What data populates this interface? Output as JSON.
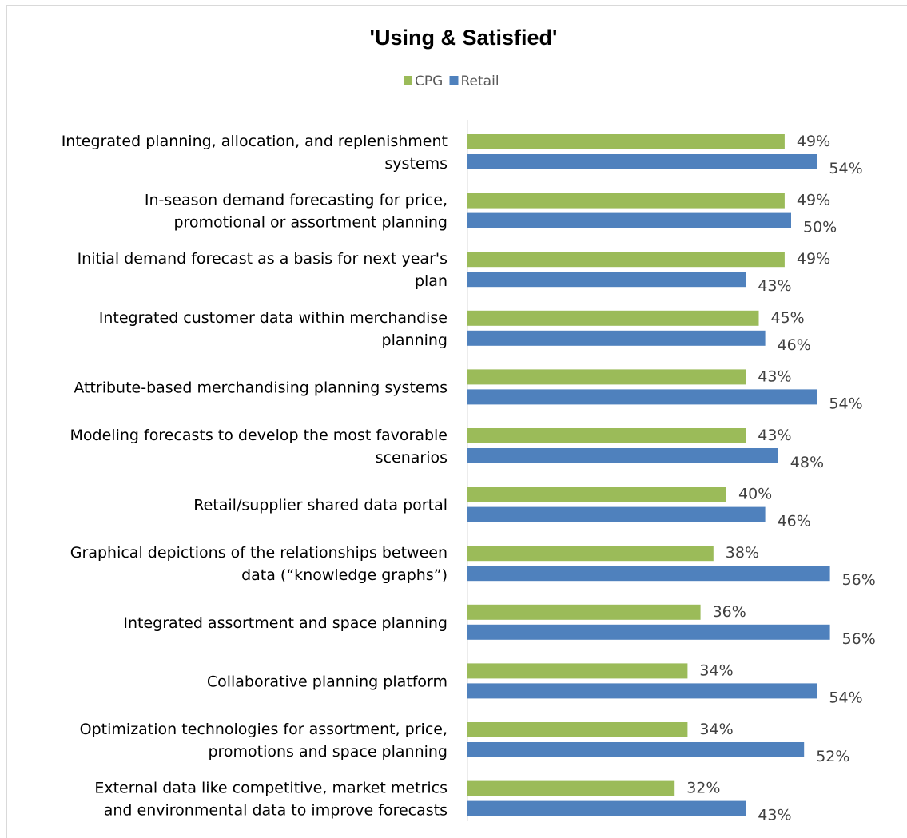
{
  "chart_data": {
    "type": "bar",
    "orientation": "horizontal",
    "title": "'Using & Satisfied'",
    "legend_position": "top",
    "xlim": [
      0,
      60
    ],
    "grid": false,
    "categories": [
      [
        "Integrated planning, allocation, and replenishment",
        "systems"
      ],
      [
        "In-season demand forecasting for price,",
        "promotional or assortment planning"
      ],
      [
        "Initial demand forecast as a basis for next year's",
        "plan"
      ],
      [
        "Integrated customer data within merchandise",
        "planning"
      ],
      [
        "Attribute-based merchandising planning systems"
      ],
      [
        "Modeling forecasts to develop the most favorable",
        "scenarios"
      ],
      [
        "Retail/supplier shared data portal"
      ],
      [
        "Graphical depictions of the relationships between",
        "data (“knowledge graphs”)"
      ],
      [
        "Integrated assortment and space planning"
      ],
      [
        "Collaborative planning platform"
      ],
      [
        "Optimization technologies for assortment, price,",
        "promotions and space planning"
      ],
      [
        "External data like competitive, market metrics",
        "and environmental data to improve forecasts"
      ]
    ],
    "series": [
      {
        "name": "CPG",
        "color": "#9bbb59",
        "values": [
          49,
          49,
          49,
          45,
          43,
          43,
          40,
          38,
          36,
          34,
          34,
          32
        ],
        "labels": [
          "49%",
          "49%",
          "49%",
          "45%",
          "43%",
          "43%",
          "40%",
          "38%",
          "36%",
          "34%",
          "34%",
          "32%"
        ]
      },
      {
        "name": "Retail",
        "color": "#4f81bd",
        "values": [
          54,
          50,
          43,
          46,
          54,
          48,
          46,
          56,
          56,
          54,
          52,
          43
        ],
        "labels": [
          "54%",
          "50%",
          "43%",
          "46%",
          "54%",
          "48%",
          "46%",
          "56%",
          "56%",
          "54%",
          "52%",
          "43%"
        ]
      }
    ]
  }
}
